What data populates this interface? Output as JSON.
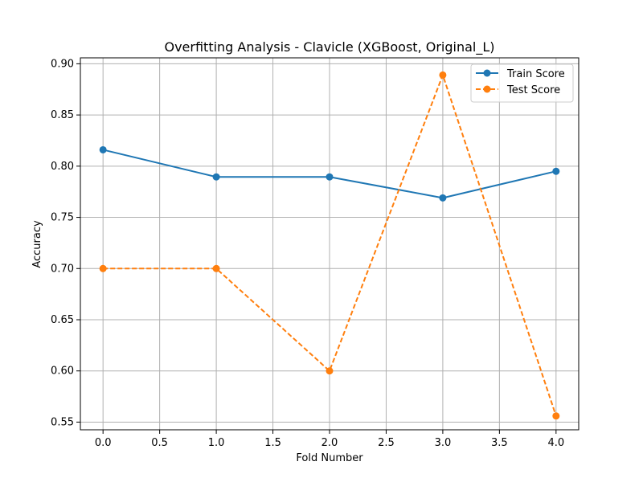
{
  "chart_data": {
    "type": "line",
    "title": "Overfitting Analysis - Clavicle (XGBoost, Original_L)",
    "xlabel": "Fold Number",
    "ylabel": "Accuracy",
    "x": [
      0,
      1,
      2,
      3,
      4
    ],
    "xlim": [
      -0.2,
      4.2
    ],
    "ylim": [
      0.5425,
      0.9058
    ],
    "xticks": [
      0.0,
      0.5,
      1.0,
      1.5,
      2.0,
      2.5,
      3.0,
      3.5,
      4.0
    ],
    "xtick_labels": [
      "0.0",
      "0.5",
      "1.0",
      "1.5",
      "2.0",
      "2.5",
      "3.0",
      "3.5",
      "4.0"
    ],
    "yticks": [
      0.55,
      0.6,
      0.65,
      0.7,
      0.75,
      0.8,
      0.85,
      0.9
    ],
    "ytick_labels": [
      "0.55",
      "0.60",
      "0.65",
      "0.70",
      "0.75",
      "0.80",
      "0.85",
      "0.90"
    ],
    "grid": true,
    "legend_position": "top-right",
    "series": [
      {
        "name": "Train Score",
        "values": [
          0.816,
          0.7895,
          0.7895,
          0.769,
          0.795
        ],
        "color": "#1f77b4",
        "line_style": "solid",
        "marker": "circle"
      },
      {
        "name": "Test Score",
        "values": [
          0.7,
          0.7,
          0.6,
          0.889,
          0.556
        ],
        "color": "#ff7f0e",
        "line_style": "dashed",
        "marker": "circle"
      }
    ]
  }
}
